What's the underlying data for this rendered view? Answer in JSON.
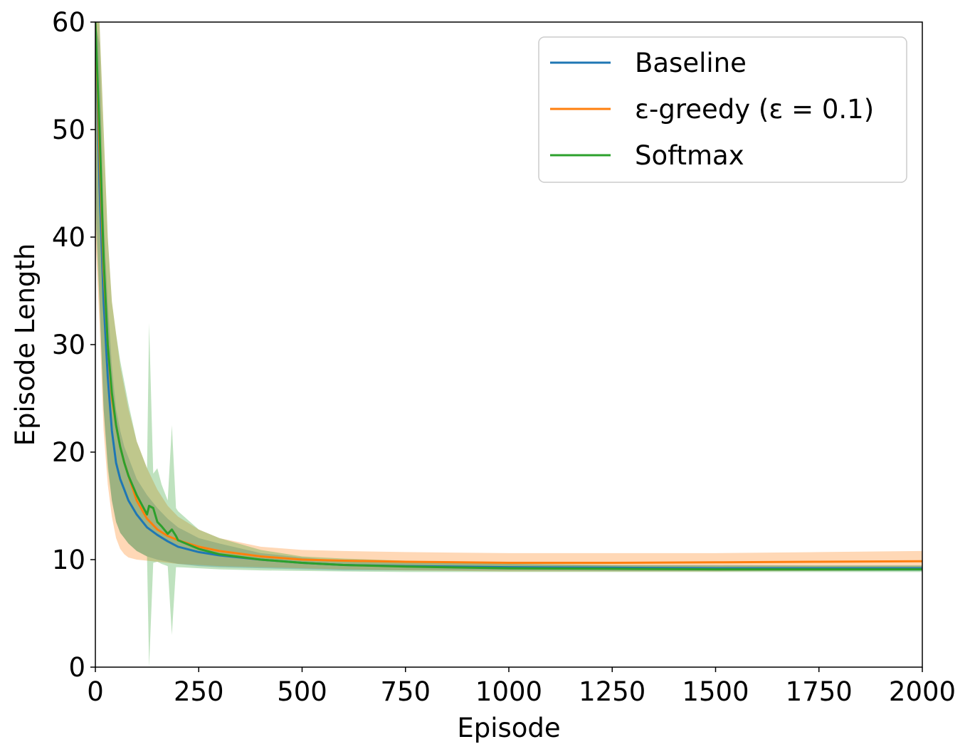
{
  "chart_data": {
    "type": "line",
    "xlabel": "Episode",
    "ylabel": "Episode Length",
    "xlim": [
      0,
      2000
    ],
    "ylim": [
      0,
      60
    ],
    "xticks": [
      0,
      250,
      500,
      750,
      1000,
      1250,
      1500,
      1750,
      2000
    ],
    "yticks": [
      0,
      10,
      20,
      30,
      40,
      50,
      60
    ],
    "grid": false,
    "legend_position": "top-right",
    "series": [
      {
        "name": "Baseline",
        "color": "#1f77b4",
        "x": [
          0,
          10,
          20,
          30,
          40,
          50,
          60,
          70,
          80,
          100,
          125,
          150,
          175,
          200,
          250,
          300,
          400,
          500,
          600,
          750,
          1000,
          1250,
          1500,
          1750,
          2000
        ],
        "y": [
          60,
          45,
          34,
          27,
          22,
          19,
          17.5,
          16.5,
          15.5,
          14.2,
          13,
          12.3,
          11.7,
          11.2,
          10.7,
          10.4,
          10,
          9.7,
          9.5,
          9.4,
          9.3,
          9.25,
          9.2,
          9.2,
          9.2
        ],
        "band_low": [
          45,
          34,
          24,
          19,
          15.5,
          13.5,
          12.5,
          12,
          11.5,
          10.8,
          10.3,
          10,
          9.8,
          9.6,
          9.4,
          9.3,
          9.2,
          9.1,
          9.0,
          9.0,
          9.0,
          8.95,
          8.95,
          8.95,
          8.95
        ],
        "band_high": [
          60,
          58,
          42,
          34,
          28,
          24,
          22,
          20.5,
          19.5,
          17.5,
          16,
          14.8,
          13.8,
          13,
          12,
          11.5,
          10.6,
          10.2,
          9.9,
          9.8,
          9.6,
          9.5,
          9.5,
          9.45,
          9.45
        ]
      },
      {
        "name": "ε-greedy (ε = 0.1)",
        "color": "#ff7f0e",
        "x": [
          0,
          10,
          20,
          30,
          40,
          50,
          60,
          70,
          80,
          100,
          125,
          150,
          175,
          200,
          250,
          300,
          400,
          500,
          600,
          750,
          1000,
          1250,
          1500,
          1750,
          2000
        ],
        "y": [
          60,
          48,
          37,
          30,
          25,
          22.5,
          20.5,
          19,
          17.8,
          15.5,
          13.8,
          12.8,
          12.2,
          11.8,
          11.2,
          10.8,
          10.3,
          10,
          9.9,
          9.8,
          9.7,
          9.7,
          9.75,
          9.8,
          9.85
        ],
        "band_low": [
          40,
          32,
          22,
          17,
          14,
          12,
          11,
          10.5,
          10.2,
          10,
          9.9,
          9.8,
          9.7,
          9.6,
          9.5,
          9.4,
          9.3,
          9.2,
          9.1,
          9.0,
          8.9,
          8.9,
          8.9,
          8.95,
          9.0
        ],
        "band_high": [
          60,
          60,
          50,
          40,
          34,
          31,
          28,
          26,
          24,
          21,
          18.5,
          16.5,
          15,
          14,
          12.8,
          12,
          11.2,
          10.9,
          10.8,
          10.7,
          10.6,
          10.6,
          10.6,
          10.7,
          10.8
        ]
      },
      {
        "name": "Softmax",
        "color": "#2ca02c",
        "x": [
          0,
          10,
          20,
          30,
          40,
          50,
          60,
          70,
          80,
          100,
          125,
          130,
          140,
          150,
          160,
          175,
          185,
          195,
          200,
          250,
          300,
          400,
          500,
          600,
          750,
          1000,
          1250,
          1500,
          1750,
          2000
        ],
        "y": [
          60,
          50,
          38,
          30,
          25.5,
          22.5,
          20.5,
          19,
          17.8,
          16,
          14.2,
          15,
          14.8,
          13.5,
          13.1,
          12.4,
          12.8,
          12.2,
          11.8,
          11,
          10.5,
          10,
          9.7,
          9.5,
          9.35,
          9.2,
          9.15,
          9.1,
          9.1,
          9.1
        ],
        "band_low": [
          42,
          34,
          24,
          18.5,
          15.5,
          13.5,
          12.5,
          12,
          11.5,
          10.8,
          10.3,
          0,
          9.7,
          9.8,
          9.6,
          9.4,
          3,
          9.3,
          9.3,
          9.2,
          9.1,
          9.0,
          8.95,
          8.9,
          8.85,
          8.85,
          8.85,
          8.85,
          8.85,
          8.85
        ],
        "band_high": [
          60,
          60,
          50,
          40,
          34,
          31,
          28.5,
          26.5,
          24.5,
          21,
          18.5,
          32,
          18,
          18.5,
          17,
          15.5,
          22.5,
          14.8,
          14.5,
          12.8,
          12,
          10.9,
          10.3,
          10.1,
          9.9,
          9.6,
          9.5,
          9.45,
          9.45,
          9.45
        ]
      }
    ]
  }
}
